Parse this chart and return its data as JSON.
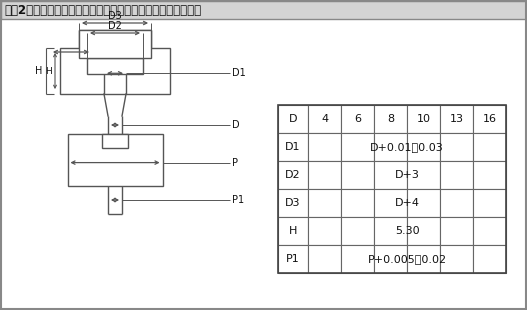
{
  "title": "【図2】可動ストリッパ（ストリッパ基準）構造のパンチ固定",
  "bg_color": "#ffffff",
  "title_bg": "#d4d4d4",
  "line_color": "#555555",
  "table_headers": [
    "D",
    "4",
    "6",
    "8",
    "10",
    "13",
    "16"
  ],
  "table_rows": [
    [
      "D1",
      "D+0.01～0.03"
    ],
    [
      "D2",
      "D+3"
    ],
    [
      "D3",
      "D+4"
    ],
    [
      "H",
      "5.30"
    ],
    [
      "P1",
      "P+0.005～0.02"
    ]
  ]
}
